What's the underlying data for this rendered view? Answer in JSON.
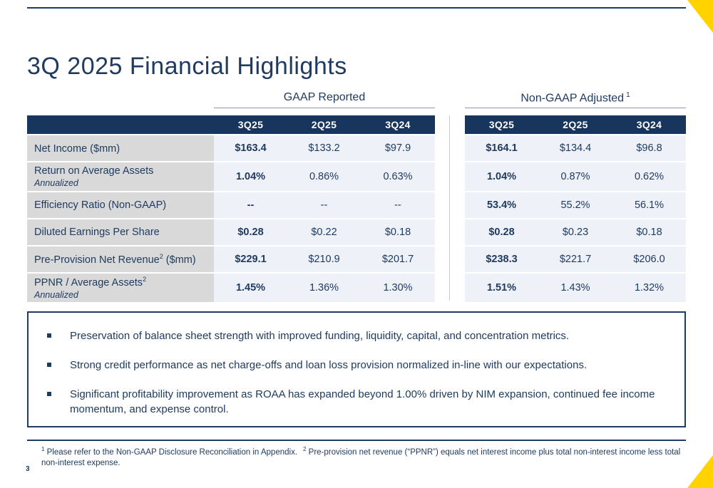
{
  "slide": {
    "title": "3Q 2025 Financial Highlights",
    "page_number": "3"
  },
  "colors": {
    "navy_text": "#1f3b60",
    "header_navy": "#17355d",
    "accent_yellow": "#ffd200",
    "label_gray": "#d9d9d9",
    "cell_blue": "#eef1f8"
  },
  "tables": {
    "gaap_heading": "GAAP Reported",
    "nongaap_heading": "Non-GAAP Adjusted",
    "nongaap_heading_sup": "1",
    "columns": [
      "3Q25",
      "2Q25",
      "3Q24"
    ],
    "rows": [
      {
        "label": "Net Income",
        "label_post": " ($mm)",
        "gaap": [
          "$163.4",
          "$133.2",
          "$97.9"
        ],
        "nongaap": [
          "$164.1",
          "$134.4",
          "$96.8"
        ]
      },
      {
        "label": "Return on Average Assets",
        "sublabel": "Annualized",
        "gaap": [
          "1.04%",
          "0.86%",
          "0.63%"
        ],
        "nongaap": [
          "1.04%",
          "0.87%",
          "0.62%"
        ]
      },
      {
        "label": "Efficiency Ratio (Non-GAAP)",
        "gaap": [
          "--",
          "--",
          "--"
        ],
        "nongaap": [
          "53.4%",
          "55.2%",
          "56.1%"
        ]
      },
      {
        "label": "Diluted Earnings Per Share",
        "gaap": [
          "$0.28",
          "$0.22",
          "$0.18"
        ],
        "nongaap": [
          "$0.28",
          "$0.23",
          "$0.18"
        ]
      },
      {
        "label": "Pre-Provision Net Revenue",
        "label_sup": "2",
        "label_post": " ($mm)",
        "gaap": [
          "$229.1",
          "$210.9",
          "$201.7"
        ],
        "nongaap": [
          "$238.3",
          "$221.7",
          "$206.0"
        ]
      },
      {
        "label": "PPNR / Average Assets",
        "label_sup": "2",
        "sublabel": "Annualized",
        "gaap": [
          "1.45%",
          "1.36%",
          "1.30%"
        ],
        "nongaap": [
          "1.51%",
          "1.43%",
          "1.32%"
        ]
      }
    ]
  },
  "bullets": [
    "Preservation of balance sheet strength with improved funding, liquidity, capital, and concentration metrics.",
    "Strong credit performance as net charge-offs and loan loss provision normalized in-line with our expectations.",
    "Significant profitability improvement as ROAA has expanded beyond 1.00% driven by NIM expansion, continued fee income momentum, and expense control."
  ],
  "footnote": {
    "sup1": "1",
    "text1": " Please refer to the Non-GAAP Disclosure Reconciliation in Appendix.",
    "sup2": "2",
    "text2": " Pre-provision net revenue (“PPNR”) equals net interest income plus total non-interest income less total non-interest expense."
  }
}
